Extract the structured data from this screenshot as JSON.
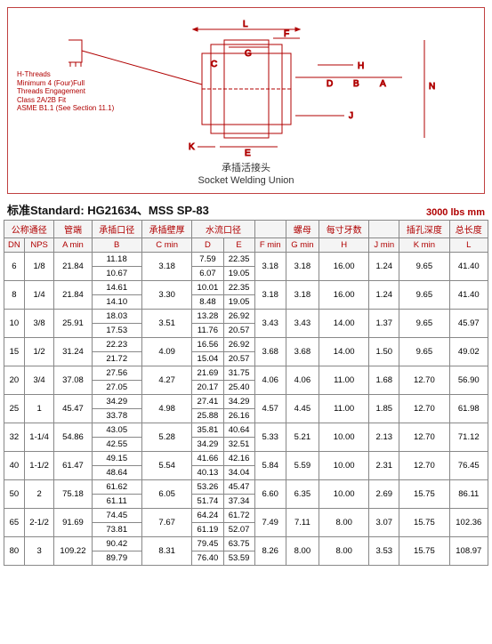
{
  "diagram": {
    "caption_zh": "承插活接头",
    "caption_en": "Socket Welding Union",
    "dim_labels": [
      "L",
      "F",
      "G",
      "C",
      "H",
      "D",
      "B",
      "A",
      "N",
      "J",
      "K",
      "E"
    ],
    "thread_note": [
      "H-Threads",
      "Minimum 4 (Four)Full",
      "Threads Engagement",
      "Class 2A/2B Fit",
      "ASME B1.1 (See Section 11.1)"
    ],
    "stroke": "#b00000"
  },
  "standard": {
    "label": "标准Standard: HG21634、MSS SP-83",
    "units": "3000 lbs   mm"
  },
  "headers": {
    "group1": "公称通径",
    "group2": "管端",
    "group3": "承插口径",
    "group4": "承插壁厚",
    "group5": "水流口径",
    "group6": "",
    "group7": "",
    "group8": "螺母",
    "group9": "每寸牙数",
    "group10": "",
    "group11": "插孔深度",
    "group12": "总长度",
    "sub": [
      "DN",
      "NPS",
      "A min",
      "B",
      "C min",
      "D",
      "E",
      "F min",
      "G min",
      "H",
      "J min",
      "K min",
      "L"
    ]
  },
  "rows": [
    {
      "dn": "6",
      "nps": "1/8",
      "a": "21.84",
      "b": [
        "11.18",
        "10.67"
      ],
      "c": "3.18",
      "d": [
        "7.59",
        "6.07"
      ],
      "e": [
        "22.35",
        "19.05"
      ],
      "f": "3.18",
      "g": "3.18",
      "h": "16.00",
      "j": "1.24",
      "k": "9.65",
      "l": "41.40"
    },
    {
      "dn": "8",
      "nps": "1/4",
      "a": "21.84",
      "b": [
        "14.61",
        "14.10"
      ],
      "c": "3.30",
      "d": [
        "10.01",
        "8.48"
      ],
      "e": [
        "22.35",
        "19.05"
      ],
      "f": "3.18",
      "g": "3.18",
      "h": "16.00",
      "j": "1.24",
      "k": "9.65",
      "l": "41.40"
    },
    {
      "dn": "10",
      "nps": "3/8",
      "a": "25.91",
      "b": [
        "18.03",
        "17.53"
      ],
      "c": "3.51",
      "d": [
        "13.28",
        "11.76"
      ],
      "e": [
        "26.92",
        "20.57"
      ],
      "f": "3.43",
      "g": "3.43",
      "h": "14.00",
      "j": "1.37",
      "k": "9.65",
      "l": "45.97"
    },
    {
      "dn": "15",
      "nps": "1/2",
      "a": "31.24",
      "b": [
        "22.23",
        "21.72"
      ],
      "c": "4.09",
      "d": [
        "16.56",
        "15.04"
      ],
      "e": [
        "26.92",
        "20.57"
      ],
      "f": "3.68",
      "g": "3.68",
      "h": "14.00",
      "j": "1.50",
      "k": "9.65",
      "l": "49.02"
    },
    {
      "dn": "20",
      "nps": "3/4",
      "a": "37.08",
      "b": [
        "27.56",
        "27.05"
      ],
      "c": "4.27",
      "d": [
        "21.69",
        "20.17"
      ],
      "e": [
        "31.75",
        "25.40"
      ],
      "f": "4.06",
      "g": "4.06",
      "h": "11.00",
      "j": "1.68",
      "k": "12.70",
      "l": "56.90"
    },
    {
      "dn": "25",
      "nps": "1",
      "a": "45.47",
      "b": [
        "34.29",
        "33.78"
      ],
      "c": "4.98",
      "d": [
        "27.41",
        "25.88"
      ],
      "e": [
        "34.29",
        "26.16"
      ],
      "f": "4.57",
      "g": "4.45",
      "h": "11.00",
      "j": "1.85",
      "k": "12.70",
      "l": "61.98"
    },
    {
      "dn": "32",
      "nps": "1-1/4",
      "a": "54.86",
      "b": [
        "43.05",
        "42.55"
      ],
      "c": "5.28",
      "d": [
        "35.81",
        "34.29"
      ],
      "e": [
        "40.64",
        "32.51"
      ],
      "f": "5.33",
      "g": "5.21",
      "h": "10.00",
      "j": "2.13",
      "k": "12.70",
      "l": "71.12"
    },
    {
      "dn": "40",
      "nps": "1-1/2",
      "a": "61.47",
      "b": [
        "49.15",
        "48.64"
      ],
      "c": "5.54",
      "d": [
        "41.66",
        "40.13"
      ],
      "e": [
        "42.16",
        "34.04"
      ],
      "f": "5.84",
      "g": "5.59",
      "h": "10.00",
      "j": "2.31",
      "k": "12.70",
      "l": "76.45"
    },
    {
      "dn": "50",
      "nps": "2",
      "a": "75.18",
      "b": [
        "61.62",
        "61.11"
      ],
      "c": "6.05",
      "d": [
        "53.26",
        "51.74"
      ],
      "e": [
        "45.47",
        "37.34"
      ],
      "f": "6.60",
      "g": "6.35",
      "h": "10.00",
      "j": "2.69",
      "k": "15.75",
      "l": "86.11"
    },
    {
      "dn": "65",
      "nps": "2-1/2",
      "a": "91.69",
      "b": [
        "74.45",
        "73.81"
      ],
      "c": "7.67",
      "d": [
        "64.24",
        "61.19"
      ],
      "e": [
        "61.72",
        "52.07"
      ],
      "f": "7.49",
      "g": "7.11",
      "h": "8.00",
      "j": "3.07",
      "k": "15.75",
      "l": "102.36"
    },
    {
      "dn": "80",
      "nps": "3",
      "a": "109.22",
      "b": [
        "90.42",
        "89.79"
      ],
      "c": "8.31",
      "d": [
        "79.45",
        "76.40"
      ],
      "e": [
        "63.75",
        "53.59"
      ],
      "f": "8.26",
      "g": "8.00",
      "h": "8.00",
      "j": "3.53",
      "k": "15.75",
      "l": "108.97"
    }
  ]
}
